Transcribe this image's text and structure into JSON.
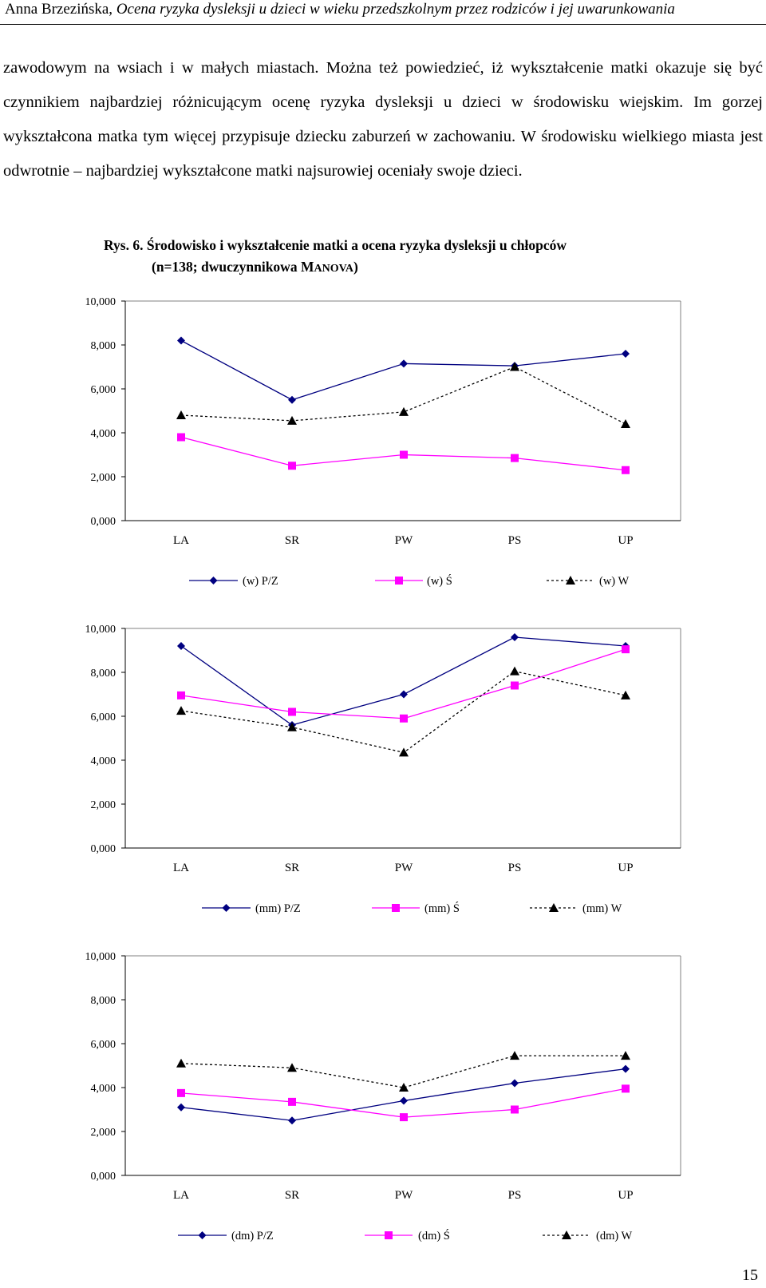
{
  "header": {
    "author": "Anna Brzezińska,",
    "title": "Ocena ryzyka dysleksji u dzieci w wieku przedszkolnym przez rodziców i jej uwarunkowania"
  },
  "body_text": "zawodowym na wsiach i w małych miastach. Można też powiedzieć, iż wykształcenie matki okazuje się być czynnikiem najbardziej różnicującym ocenę ryzyka dysleksji u dzieci w środowisku wiejskim. Im gorzej wykształcona matka tym więcej przypisuje dziecku zaburzeń w zachowaniu. W środowisku wielkiego miasta jest odwrotnie – najbardziej wykształcone matki najsurowiej oceniały swoje dzieci.",
  "caption": {
    "line1": "Rys. 6.  Środowisko i wykształcenie matki a ocena ryzyka dysleksji u chłopców",
    "line2_prefix": "(n=138; dwuczynnikowa M",
    "line2_sc": "ANOVA",
    "line2_suffix": ")"
  },
  "page_number": "15",
  "colors": {
    "navy": "#000080",
    "magenta": "#ff00ff",
    "black": "#000000"
  },
  "chart_data": [
    {
      "type": "line",
      "categories": [
        "LA",
        "SR",
        "PW",
        "PS",
        "UP"
      ],
      "ylim": [
        0,
        10
      ],
      "yticks": [
        "0,000",
        "2,000",
        "4,000",
        "6,000",
        "8,000",
        "10,000"
      ],
      "grid": false,
      "legend": "bottom",
      "series": [
        {
          "name": "(w) P/Z",
          "values": [
            8.2,
            5.5,
            7.15,
            7.05,
            7.6
          ],
          "color": "#000080",
          "marker": "diamond",
          "dash": "solid"
        },
        {
          "name": "(w) Ś",
          "values": [
            3.8,
            2.5,
            3.0,
            2.85,
            2.3
          ],
          "color": "#ff00ff",
          "marker": "square",
          "dash": "solid"
        },
        {
          "name": "(w) W",
          "values": [
            4.8,
            4.55,
            4.95,
            7.0,
            4.4
          ],
          "color": "#000000",
          "marker": "triangle",
          "dash": "dashed"
        }
      ]
    },
    {
      "type": "line",
      "categories": [
        "LA",
        "SR",
        "PW",
        "PS",
        "UP"
      ],
      "ylim": [
        0,
        10
      ],
      "yticks": [
        "0,000",
        "2,000",
        "4,000",
        "6,000",
        "8,000",
        "10,000"
      ],
      "grid": false,
      "legend": "bottom",
      "series": [
        {
          "name": "(mm) P/Z",
          "values": [
            9.2,
            5.6,
            7.0,
            9.6,
            9.2
          ],
          "color": "#000080",
          "marker": "diamond",
          "dash": "solid"
        },
        {
          "name": "(mm) Ś",
          "values": [
            6.95,
            6.2,
            5.9,
            7.4,
            9.05
          ],
          "color": "#ff00ff",
          "marker": "square",
          "dash": "solid"
        },
        {
          "name": "(mm) W",
          "values": [
            6.25,
            5.5,
            4.35,
            8.05,
            6.95
          ],
          "color": "#000000",
          "marker": "triangle",
          "dash": "dashed"
        }
      ]
    },
    {
      "type": "line",
      "categories": [
        "LA",
        "SR",
        "PW",
        "PS",
        "UP"
      ],
      "ylim": [
        0,
        10
      ],
      "yticks": [
        "0,000",
        "2,000",
        "4,000",
        "6,000",
        "8,000",
        "10,000"
      ],
      "grid": false,
      "legend": "bottom",
      "series": [
        {
          "name": "(dm) P/Z",
          "values": [
            3.1,
            2.5,
            3.4,
            4.2,
            4.85
          ],
          "color": "#000080",
          "marker": "diamond",
          "dash": "solid"
        },
        {
          "name": "(dm) Ś",
          "values": [
            3.75,
            3.35,
            2.65,
            3.0,
            3.95
          ],
          "color": "#ff00ff",
          "marker": "square",
          "dash": "solid"
        },
        {
          "name": "(dm) W",
          "values": [
            5.1,
            4.9,
            4.0,
            5.45,
            5.45
          ],
          "color": "#000000",
          "marker": "triangle",
          "dash": "dashed"
        }
      ]
    }
  ]
}
